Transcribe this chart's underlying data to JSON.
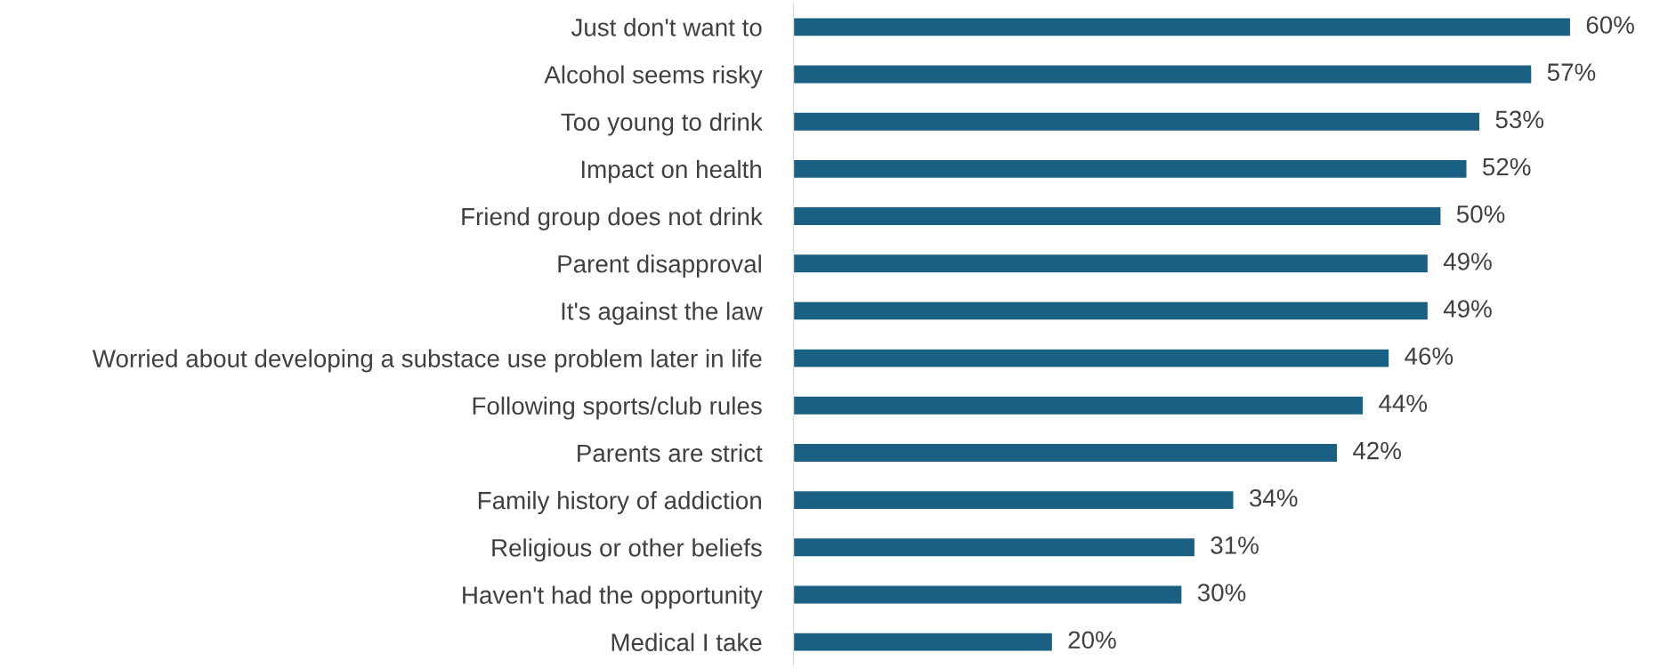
{
  "chart_data": {
    "type": "bar",
    "orientation": "horizontal",
    "categories": [
      "Just don't want to",
      "Alcohol seems risky",
      "Too young to drink",
      "Impact on health",
      "Friend group does not drink",
      "Parent disapproval",
      "It's against the law",
      "Worried about developing a substace use problem later in life",
      "Following sports/club rules",
      "Parents are strict",
      "Family history of addiction",
      "Religious or other beliefs",
      "Haven't had the opportunity",
      "Medical I take"
    ],
    "values": [
      60,
      57,
      53,
      52,
      50,
      49,
      49,
      46,
      44,
      42,
      34,
      31,
      30,
      20
    ],
    "value_labels": [
      "60%",
      "57%",
      "53%",
      "52%",
      "50%",
      "49%",
      "49%",
      "46%",
      "44%",
      "42%",
      "34%",
      "31%",
      "30%",
      "20%"
    ],
    "color": "#1a6082",
    "grid": false,
    "legend": false
  }
}
